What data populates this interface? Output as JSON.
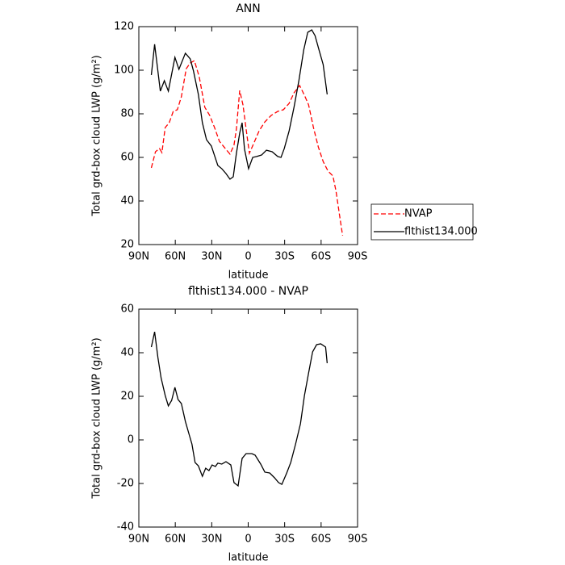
{
  "chart_data": [
    {
      "type": "line",
      "title": "ANN",
      "xlabel": "latitude",
      "ylabel": "Total grd-box cloud LWP (g/m²)",
      "xlim": [
        90,
        -90
      ],
      "xticks": [
        {
          "value": 90,
          "label": "90N"
        },
        {
          "value": 60,
          "label": "60N"
        },
        {
          "value": 30,
          "label": "30N"
        },
        0,
        {
          "value": -30,
          "label": "30S"
        },
        {
          "value": -60,
          "label": "60S"
        },
        {
          "value": -90,
          "label": "90S"
        }
      ],
      "ylim": [
        20,
        120
      ],
      "yticks": [
        20,
        40,
        60,
        80,
        100,
        120
      ],
      "legend": "right",
      "series": [
        {
          "name": "NVAP",
          "color": "#ff0000",
          "style": "dashed",
          "x": [
            79.7,
            76.3,
            73,
            71,
            68.3,
            65,
            61.7,
            58.3,
            55,
            51,
            47.7,
            44.3,
            40.3,
            35.7,
            31.7,
            27.7,
            23.7,
            18.3,
            15,
            11.7,
            9.7,
            7,
            4.3,
            1,
            -1,
            -5,
            -9,
            -13.7,
            -19,
            -24.3,
            -29,
            -33.7,
            -37.7,
            -42.3,
            -46.3,
            -49.7,
            -53.7,
            -57.7,
            -61.7,
            -65.7,
            -69.7,
            -72.3,
            -75,
            -77.7
          ],
          "values": [
            55.2,
            62.6,
            64.1,
            62.2,
            73.7,
            75.9,
            81.1,
            81.9,
            87.8,
            100.7,
            103.3,
            104.4,
            97,
            83,
            79.3,
            73.7,
            67.4,
            63.7,
            61.5,
            65.6,
            73,
            90.7,
            84.1,
            70,
            61.9,
            67,
            72.2,
            76.3,
            79.3,
            81.1,
            81.9,
            84.8,
            89.6,
            93,
            88.5,
            84.1,
            73.7,
            64.8,
            58.1,
            53.7,
            51.5,
            44.4,
            34.1,
            24.1
          ]
        },
        {
          "name": "flthist134.000",
          "color": "#000000",
          "style": "solid",
          "x": [
            79.7,
            77,
            72.3,
            69,
            65.7,
            60.3,
            57,
            51.7,
            47.7,
            45,
            41,
            37.7,
            34.3,
            30.3,
            25,
            21.7,
            18.3,
            15,
            12.3,
            9.7,
            7,
            5,
            3,
            -0.3,
            -3.7,
            -7,
            -11,
            -15,
            -19.7,
            -24.3,
            -27,
            -29.7,
            -33.7,
            -37.7,
            -41.7,
            -45.7,
            -49,
            -52.3,
            -55,
            -58.3,
            -61.7,
            -65
          ],
          "values": [
            97.8,
            111.9,
            90.4,
            95.2,
            90.4,
            105.9,
            100.4,
            107.8,
            105.2,
            99.6,
            88.9,
            75.9,
            68.1,
            65.2,
            56.3,
            54.8,
            52.6,
            50,
            51.1,
            61.9,
            71.1,
            75.9,
            63.7,
            54.8,
            60,
            60.4,
            61.1,
            63.3,
            62.6,
            60.4,
            60,
            64.1,
            72.2,
            83,
            95.2,
            109.3,
            117.4,
            118.5,
            115.9,
            109.3,
            102.6,
            88.9
          ]
        }
      ]
    },
    {
      "type": "line",
      "title": "flthist134.000 - NVAP",
      "xlabel": "latitude",
      "ylabel": "Total grd-box cloud LWP (g/m²)",
      "xlim": [
        90,
        -90
      ],
      "xticks": [
        {
          "value": 90,
          "label": "90N"
        },
        {
          "value": 60,
          "label": "60N"
        },
        {
          "value": 30,
          "label": "30N"
        },
        0,
        {
          "value": -30,
          "label": "30S"
        },
        {
          "value": -60,
          "label": "60S"
        },
        {
          "value": -90,
          "label": "90S"
        }
      ],
      "ylim": [
        -40,
        60
      ],
      "yticks": [
        -40,
        -20,
        0,
        20,
        40,
        60
      ],
      "series": [
        {
          "color": "#000000",
          "style": "solid",
          "x": [
            79.7,
            77,
            74.3,
            71.7,
            68.3,
            65.7,
            63,
            60.3,
            57.7,
            55,
            51.7,
            48.3,
            46.3,
            43.7,
            41,
            37.7,
            35,
            32.3,
            29.7,
            27,
            25,
            21.7,
            18.3,
            14.3,
            11.7,
            8.3,
            5,
            1.7,
            -3,
            -5.7,
            -10.3,
            -13.7,
            -17.7,
            -21.7,
            -25,
            -27.7,
            -31.7,
            -35,
            -39,
            -43,
            -46.3,
            -49.7,
            -53,
            -56.3,
            -59.7,
            -63.7,
            -65
          ],
          "values": [
            42.6,
            49.6,
            37.8,
            28.5,
            20.4,
            15.6,
            18.1,
            24.1,
            18.5,
            16.7,
            8.5,
            1.9,
            -1.9,
            -10.4,
            -11.9,
            -16.7,
            -13,
            -14.1,
            -11.5,
            -12.2,
            -10.7,
            -11.1,
            -10,
            -11.5,
            -19.6,
            -21.1,
            -8.5,
            -6.3,
            -6.3,
            -7,
            -11.1,
            -14.8,
            -15.2,
            -17.4,
            -19.6,
            -20.4,
            -15.2,
            -10.4,
            -1.9,
            7.4,
            20.4,
            30.7,
            40.4,
            43.7,
            44.1,
            42.6,
            35.2
          ]
        }
      ]
    }
  ]
}
